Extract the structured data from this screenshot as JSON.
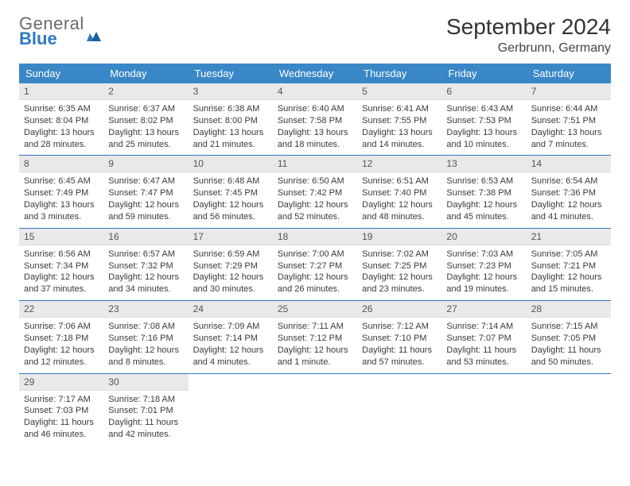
{
  "logo": {
    "word1": "General",
    "word2": "Blue"
  },
  "title": {
    "month": "September 2024",
    "location": "Gerbrunn, Germany"
  },
  "colors": {
    "header_bg": "#3a87c8",
    "header_text": "#ffffff",
    "row_divider": "#2e78c2",
    "daynum_bg": "#e9e9e9",
    "logo_blue": "#2e78c2",
    "logo_gray": "#6a6a6a"
  },
  "dayHeaders": [
    "Sunday",
    "Monday",
    "Tuesday",
    "Wednesday",
    "Thursday",
    "Friday",
    "Saturday"
  ],
  "weeks": [
    [
      {
        "n": "1",
        "sr": "Sunrise: 6:35 AM",
        "ss": "Sunset: 8:04 PM",
        "dl": "Daylight: 13 hours and 28 minutes."
      },
      {
        "n": "2",
        "sr": "Sunrise: 6:37 AM",
        "ss": "Sunset: 8:02 PM",
        "dl": "Daylight: 13 hours and 25 minutes."
      },
      {
        "n": "3",
        "sr": "Sunrise: 6:38 AM",
        "ss": "Sunset: 8:00 PM",
        "dl": "Daylight: 13 hours and 21 minutes."
      },
      {
        "n": "4",
        "sr": "Sunrise: 6:40 AM",
        "ss": "Sunset: 7:58 PM",
        "dl": "Daylight: 13 hours and 18 minutes."
      },
      {
        "n": "5",
        "sr": "Sunrise: 6:41 AM",
        "ss": "Sunset: 7:55 PM",
        "dl": "Daylight: 13 hours and 14 minutes."
      },
      {
        "n": "6",
        "sr": "Sunrise: 6:43 AM",
        "ss": "Sunset: 7:53 PM",
        "dl": "Daylight: 13 hours and 10 minutes."
      },
      {
        "n": "7",
        "sr": "Sunrise: 6:44 AM",
        "ss": "Sunset: 7:51 PM",
        "dl": "Daylight: 13 hours and 7 minutes."
      }
    ],
    [
      {
        "n": "8",
        "sr": "Sunrise: 6:45 AM",
        "ss": "Sunset: 7:49 PM",
        "dl": "Daylight: 13 hours and 3 minutes."
      },
      {
        "n": "9",
        "sr": "Sunrise: 6:47 AM",
        "ss": "Sunset: 7:47 PM",
        "dl": "Daylight: 12 hours and 59 minutes."
      },
      {
        "n": "10",
        "sr": "Sunrise: 6:48 AM",
        "ss": "Sunset: 7:45 PM",
        "dl": "Daylight: 12 hours and 56 minutes."
      },
      {
        "n": "11",
        "sr": "Sunrise: 6:50 AM",
        "ss": "Sunset: 7:42 PM",
        "dl": "Daylight: 12 hours and 52 minutes."
      },
      {
        "n": "12",
        "sr": "Sunrise: 6:51 AM",
        "ss": "Sunset: 7:40 PM",
        "dl": "Daylight: 12 hours and 48 minutes."
      },
      {
        "n": "13",
        "sr": "Sunrise: 6:53 AM",
        "ss": "Sunset: 7:38 PM",
        "dl": "Daylight: 12 hours and 45 minutes."
      },
      {
        "n": "14",
        "sr": "Sunrise: 6:54 AM",
        "ss": "Sunset: 7:36 PM",
        "dl": "Daylight: 12 hours and 41 minutes."
      }
    ],
    [
      {
        "n": "15",
        "sr": "Sunrise: 6:56 AM",
        "ss": "Sunset: 7:34 PM",
        "dl": "Daylight: 12 hours and 37 minutes."
      },
      {
        "n": "16",
        "sr": "Sunrise: 6:57 AM",
        "ss": "Sunset: 7:32 PM",
        "dl": "Daylight: 12 hours and 34 minutes."
      },
      {
        "n": "17",
        "sr": "Sunrise: 6:59 AM",
        "ss": "Sunset: 7:29 PM",
        "dl": "Daylight: 12 hours and 30 minutes."
      },
      {
        "n": "18",
        "sr": "Sunrise: 7:00 AM",
        "ss": "Sunset: 7:27 PM",
        "dl": "Daylight: 12 hours and 26 minutes."
      },
      {
        "n": "19",
        "sr": "Sunrise: 7:02 AM",
        "ss": "Sunset: 7:25 PM",
        "dl": "Daylight: 12 hours and 23 minutes."
      },
      {
        "n": "20",
        "sr": "Sunrise: 7:03 AM",
        "ss": "Sunset: 7:23 PM",
        "dl": "Daylight: 12 hours and 19 minutes."
      },
      {
        "n": "21",
        "sr": "Sunrise: 7:05 AM",
        "ss": "Sunset: 7:21 PM",
        "dl": "Daylight: 12 hours and 15 minutes."
      }
    ],
    [
      {
        "n": "22",
        "sr": "Sunrise: 7:06 AM",
        "ss": "Sunset: 7:18 PM",
        "dl": "Daylight: 12 hours and 12 minutes."
      },
      {
        "n": "23",
        "sr": "Sunrise: 7:08 AM",
        "ss": "Sunset: 7:16 PM",
        "dl": "Daylight: 12 hours and 8 minutes."
      },
      {
        "n": "24",
        "sr": "Sunrise: 7:09 AM",
        "ss": "Sunset: 7:14 PM",
        "dl": "Daylight: 12 hours and 4 minutes."
      },
      {
        "n": "25",
        "sr": "Sunrise: 7:11 AM",
        "ss": "Sunset: 7:12 PM",
        "dl": "Daylight: 12 hours and 1 minute."
      },
      {
        "n": "26",
        "sr": "Sunrise: 7:12 AM",
        "ss": "Sunset: 7:10 PM",
        "dl": "Daylight: 11 hours and 57 minutes."
      },
      {
        "n": "27",
        "sr": "Sunrise: 7:14 AM",
        "ss": "Sunset: 7:07 PM",
        "dl": "Daylight: 11 hours and 53 minutes."
      },
      {
        "n": "28",
        "sr": "Sunrise: 7:15 AM",
        "ss": "Sunset: 7:05 PM",
        "dl": "Daylight: 11 hours and 50 minutes."
      }
    ],
    [
      {
        "n": "29",
        "sr": "Sunrise: 7:17 AM",
        "ss": "Sunset: 7:03 PM",
        "dl": "Daylight: 11 hours and 46 minutes."
      },
      {
        "n": "30",
        "sr": "Sunrise: 7:18 AM",
        "ss": "Sunset: 7:01 PM",
        "dl": "Daylight: 11 hours and 42 minutes."
      },
      null,
      null,
      null,
      null,
      null
    ]
  ]
}
